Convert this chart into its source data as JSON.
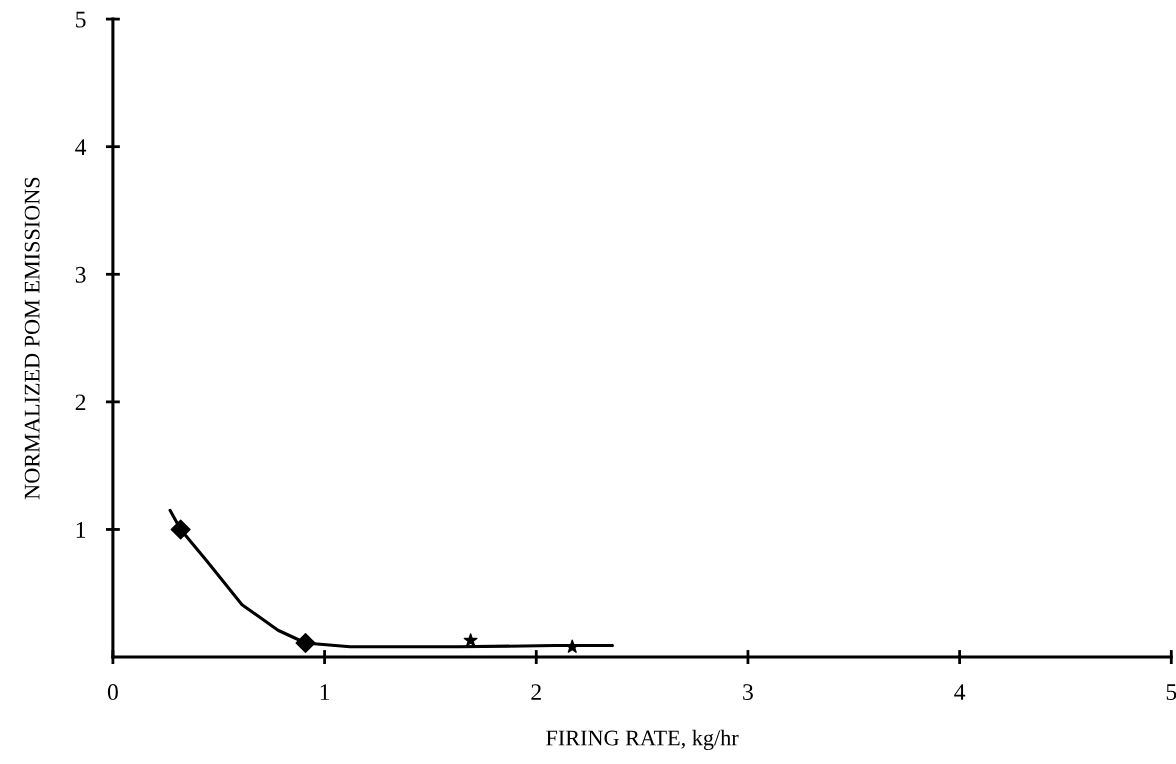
{
  "chart_data": {
    "type": "scatter",
    "xlabel": "FIRING RATE, kg/hr",
    "ylabel": "NORMALIZED POM EMISSIONS",
    "xlim": [
      0,
      5
    ],
    "ylim": [
      0,
      5
    ],
    "xticks": [
      0,
      1,
      2,
      3,
      4,
      5
    ],
    "yticks": [
      1,
      2,
      3,
      4,
      5
    ],
    "grid": false,
    "legend": false,
    "series": [
      {
        "type": "line",
        "color": "#000000",
        "marker": "none",
        "line_style": "solid",
        "x": [
          0.27,
          0.32,
          0.44,
          0.61,
          0.78,
          0.91,
          1.12,
          1.63,
          2.09,
          2.36
        ],
        "values": [
          1.15,
          1.0,
          0.76,
          0.41,
          0.21,
          0.11,
          0.08,
          0.08,
          0.09,
          0.09
        ]
      },
      {
        "color": "#000000",
        "marker": "diamond",
        "x": [
          0.32,
          0.91
        ],
        "values": [
          1.0,
          0.11
        ]
      },
      {
        "color": "#000000",
        "marker": "star",
        "x": [
          1.69,
          2.17
        ],
        "values": [
          0.13,
          0.08
        ]
      }
    ]
  }
}
